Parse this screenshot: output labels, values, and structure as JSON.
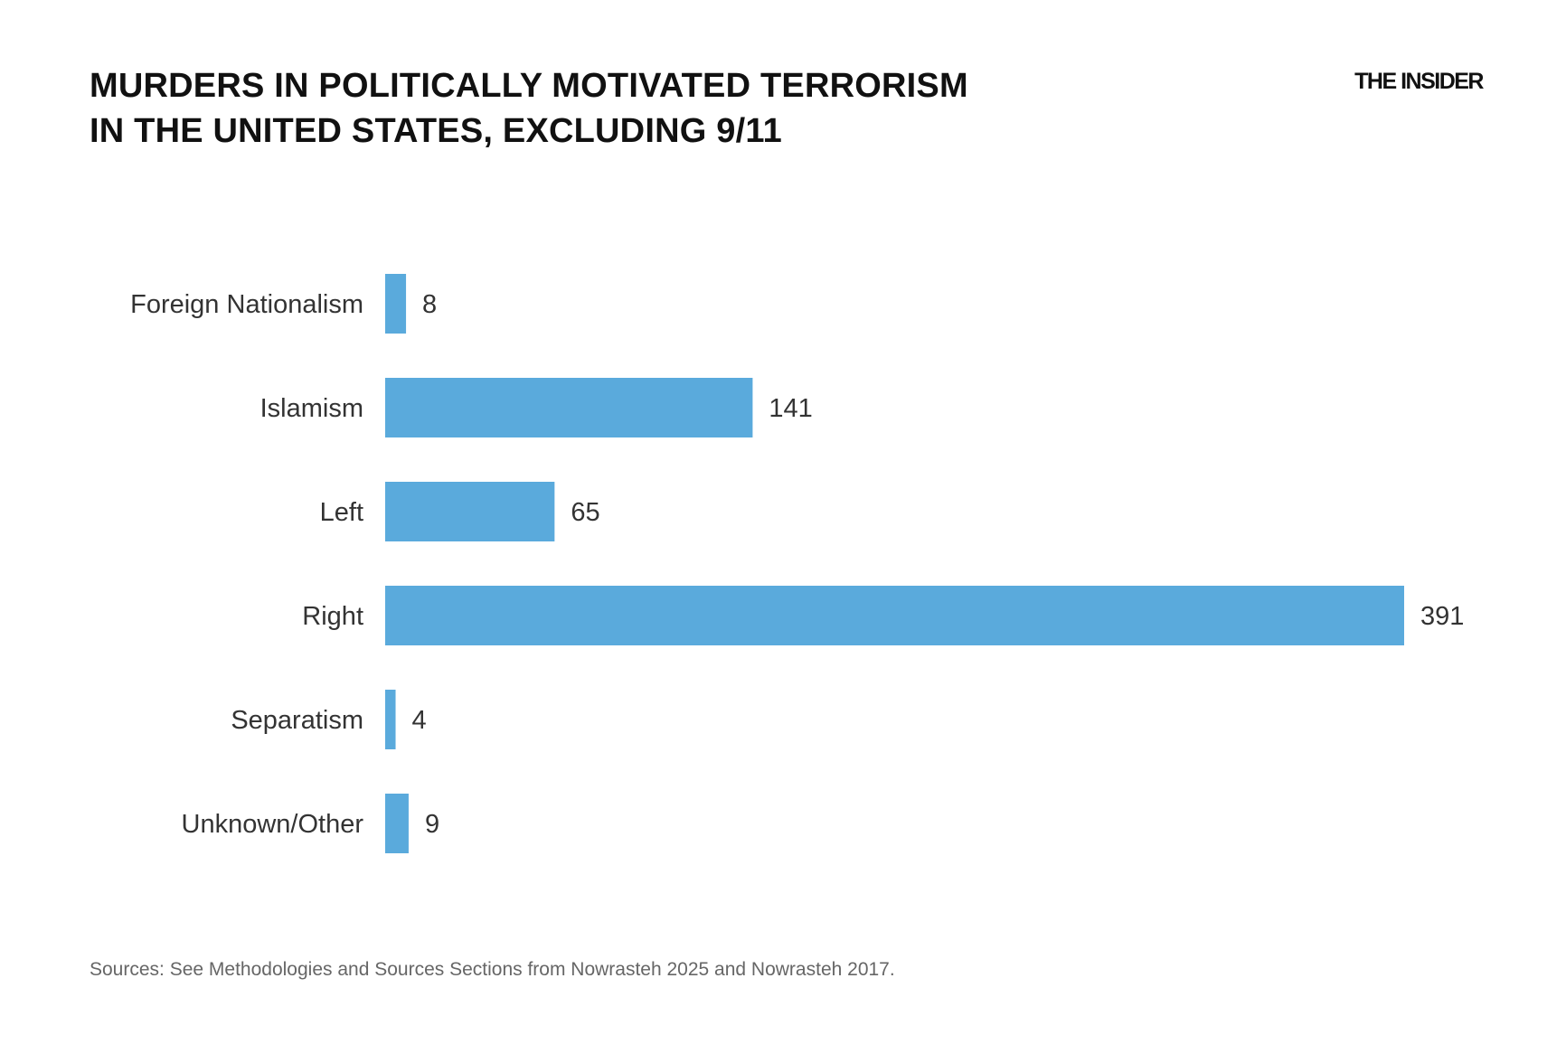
{
  "header": {
    "title_line1": "MURDERS IN POLITICALLY MOTIVATED TERRORISM",
    "title_line2": "IN THE UNITED STATES, EXCLUDING 9/11",
    "logo": "THE INSIDER"
  },
  "chart_data": {
    "type": "bar",
    "orientation": "horizontal",
    "title": "MURDERS IN POLITICALLY MOTIVATED TERRORISM IN THE UNITED STATES, EXCLUDING 9/11",
    "categories": [
      "Foreign Nationalism",
      "Islamism",
      "Left",
      "Right",
      "Separatism",
      "Unknown/Other"
    ],
    "values": [
      8,
      141,
      65,
      391,
      4,
      9
    ],
    "data_labels": [
      "8",
      "141",
      "65",
      "391",
      "4",
      "9"
    ],
    "bar_color": "#5aaadc",
    "grid": false,
    "axis_visible": false
  },
  "footer": {
    "source": "Sources: See Methodologies and Sources Sections from Nowrasteh 2025 and Nowrasteh 2017."
  }
}
